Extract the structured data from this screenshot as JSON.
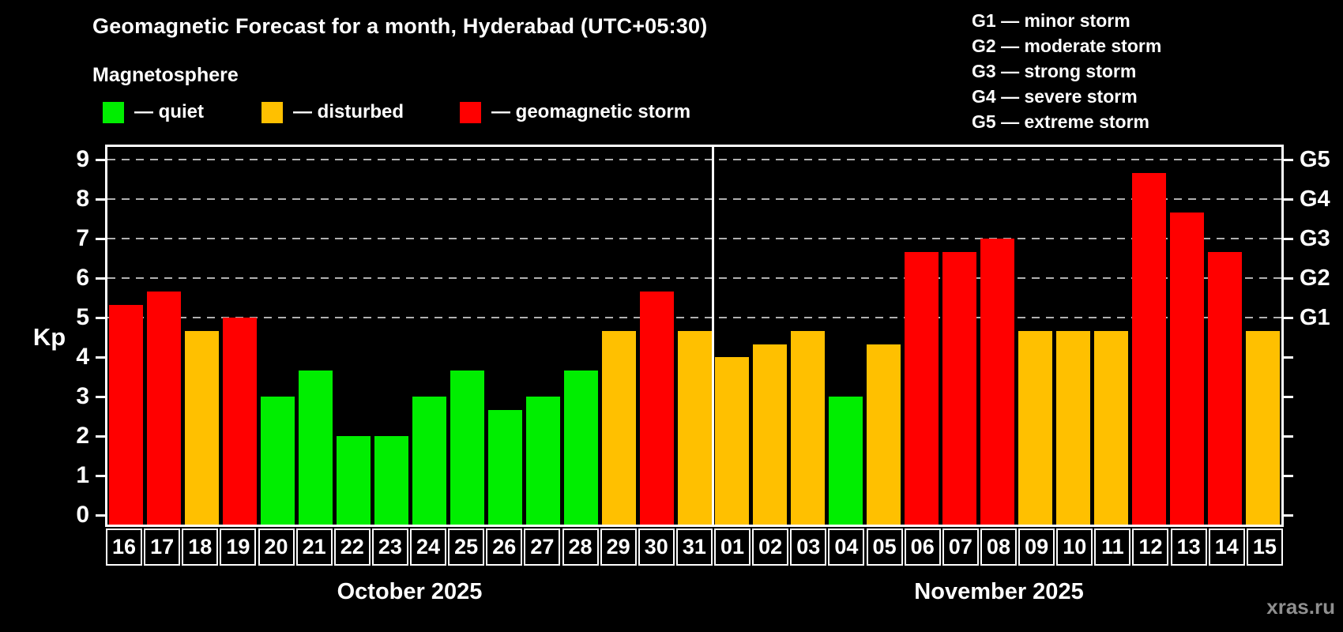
{
  "title": "Geomagnetic Forecast for a month, Hyderabad (UTC+05:30)",
  "subtitle": "Magnetosphere",
  "legend": {
    "items": [
      {
        "level": "quiet",
        "label": "— quiet"
      },
      {
        "level": "disturbed",
        "label": "— disturbed"
      },
      {
        "level": "storm",
        "label": "— geomagnetic storm"
      }
    ]
  },
  "g_legend": {
    "lines": [
      "G1 — minor storm",
      "G2 — moderate storm",
      "G3 — strong storm",
      "G4 — severe storm",
      "G5 — extreme storm"
    ]
  },
  "axis": {
    "kp_label": "Kp",
    "y_ticks": [
      0,
      1,
      2,
      3,
      4,
      5,
      6,
      7,
      8,
      9
    ],
    "right_labels": [
      {
        "value": 5,
        "label": "G1"
      },
      {
        "value": 6,
        "label": "G2"
      },
      {
        "value": 7,
        "label": "G3"
      },
      {
        "value": 8,
        "label": "G4"
      },
      {
        "value": 9,
        "label": "G5"
      }
    ]
  },
  "colors": {
    "quiet": "#00ee00",
    "disturbed": "#ffc000",
    "storm": "#ff0000",
    "gridline": "#b0b0b0",
    "axis": "#ffffff",
    "background": "#000000",
    "watermark_text": "#8f8f8f"
  },
  "chart_data": {
    "type": "bar",
    "ylabel": "Kp",
    "ylim": [
      0,
      9
    ],
    "gridlines_at": [
      5,
      6,
      7,
      8,
      9
    ],
    "legend_position": "top-left",
    "months": [
      {
        "label": "October 2025",
        "days": [
          "16",
          "17",
          "18",
          "19",
          "20",
          "21",
          "22",
          "23",
          "24",
          "25",
          "26",
          "27",
          "28",
          "29",
          "30",
          "31"
        ],
        "values": [
          5.33,
          5.67,
          4.67,
          5.0,
          3.0,
          3.67,
          2.0,
          2.0,
          3.0,
          3.67,
          2.67,
          3.0,
          3.67,
          4.67,
          5.67,
          4.67
        ],
        "levels": [
          "storm",
          "storm",
          "disturbed",
          "storm",
          "quiet",
          "quiet",
          "quiet",
          "quiet",
          "quiet",
          "quiet",
          "quiet",
          "quiet",
          "quiet",
          "disturbed",
          "storm",
          "disturbed"
        ]
      },
      {
        "label": "November 2025",
        "days": [
          "01",
          "02",
          "03",
          "04",
          "05",
          "06",
          "07",
          "08",
          "09",
          "10",
          "11",
          "12",
          "13",
          "14",
          "15"
        ],
        "values": [
          4.0,
          4.33,
          4.67,
          3.0,
          4.33,
          6.67,
          6.67,
          7.0,
          4.67,
          4.67,
          4.67,
          8.67,
          7.67,
          6.67,
          4.67
        ],
        "levels": [
          "disturbed",
          "disturbed",
          "disturbed",
          "quiet",
          "disturbed",
          "storm",
          "storm",
          "storm",
          "disturbed",
          "disturbed",
          "disturbed",
          "storm",
          "storm",
          "storm",
          "disturbed"
        ]
      }
    ]
  },
  "footer": {
    "october_label": "October 2025",
    "november_label": "November 2025",
    "watermark": "xras.ru"
  }
}
